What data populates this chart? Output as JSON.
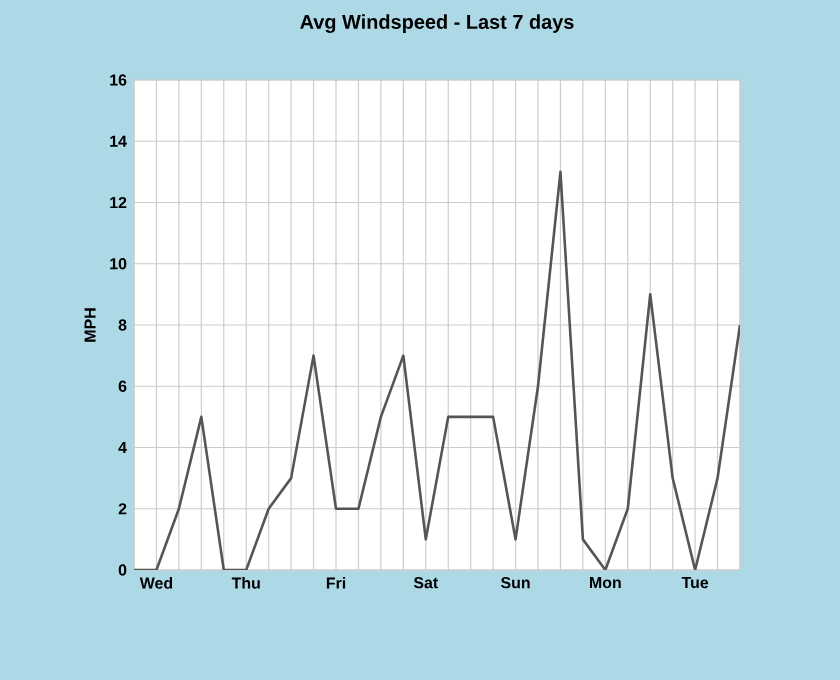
{
  "chart_data": {
    "type": "line",
    "title": "Avg Windspeed - Last 7 days",
    "ylabel": "MPH",
    "categories": [
      null,
      "Wed",
      null,
      null,
      null,
      "Thu",
      null,
      null,
      null,
      "Fri",
      null,
      null,
      null,
      "Sat",
      null,
      null,
      null,
      "Sun",
      null,
      null,
      null,
      "Mon",
      null,
      null,
      null,
      "Tue",
      null,
      null
    ],
    "series": [
      {
        "color": "#555555",
        "values": [
          0,
          0,
          2,
          5,
          0,
          0,
          2,
          3,
          7,
          2,
          2,
          5,
          7,
          1,
          5,
          5,
          5,
          1,
          6,
          13,
          1,
          0,
          2,
          9,
          3,
          0,
          3,
          8
        ]
      }
    ],
    "ylim": [
      0,
      16
    ],
    "yticks": [
      0,
      2,
      4,
      6,
      8,
      10,
      12,
      14,
      16
    ],
    "grid": true,
    "marker": "none",
    "line_style": "solid"
  }
}
